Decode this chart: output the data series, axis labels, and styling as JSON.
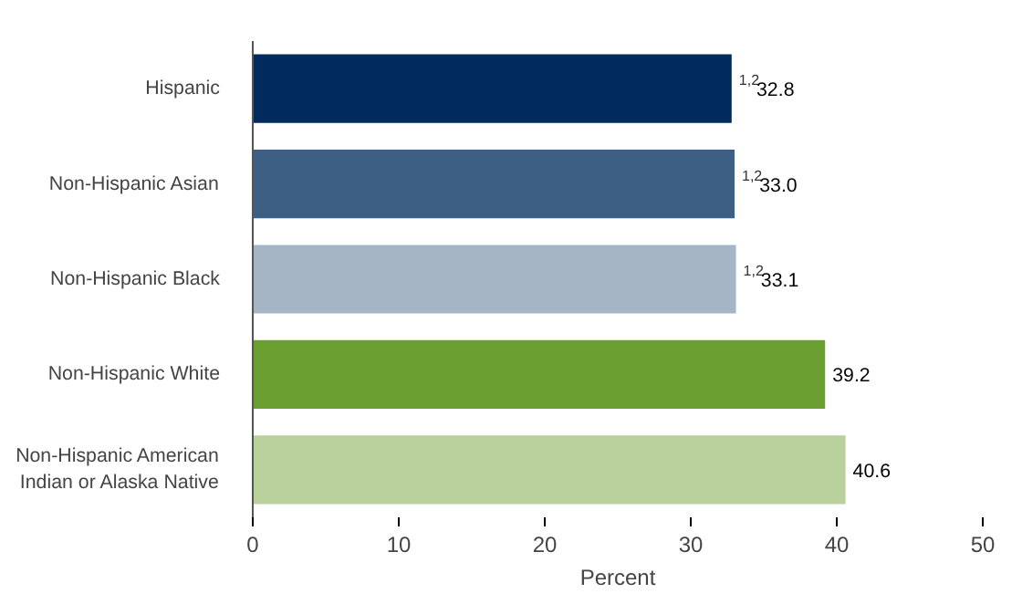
{
  "chart_data": {
    "type": "bar",
    "orientation": "horizontal",
    "xlabel": "Percent",
    "categories": [
      "Hispanic",
      "Non-Hispanic Asian",
      "Non-Hispanic Black",
      "Non-Hispanic White",
      "Non-Hispanic American Indian or Alaska Native"
    ],
    "values": [
      32.8,
      33.0,
      33.1,
      39.2,
      40.6
    ],
    "colors": [
      "#002b5c",
      "#3e5f84",
      "#a5b5c6",
      "#6b9e31",
      "#b7d09c"
    ],
    "value_labels": [
      "$^{1,2}$32.8",
      "$^{1,2}$33.0",
      "$^{1,2}$33.1",
      "39.2",
      "40.6"
    ],
    "xlim": [
      0,
      50
    ],
    "xticks": [
      0,
      10,
      20,
      30,
      40,
      50
    ],
    "grid": false
  }
}
